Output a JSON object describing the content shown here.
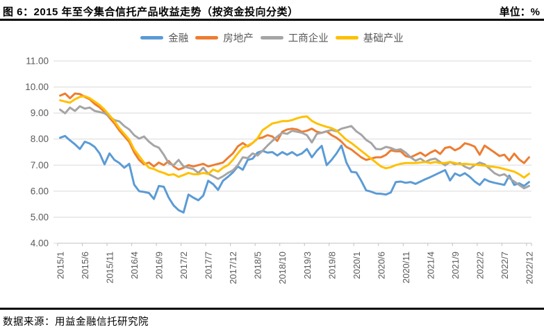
{
  "header": {
    "title": "图 6：2015 年至今集合信托产品收益走势（按资金投向分类）",
    "unit_label": "单位：%"
  },
  "footer": {
    "source": "数据来源：用益金融信托研究院"
  },
  "colors": {
    "finance": "#5B9BD5",
    "real_estate": "#ED7D31",
    "industrial": "#A5A5A5",
    "infrastructure": "#FFC000",
    "gridline": "#D9D9D9",
    "axis": "#BFBFBF",
    "tick_text": "#595959"
  },
  "chart_data": {
    "type": "line",
    "title": "图 6：2015 年至今集合信托产品收益走势（按资金投向分类）",
    "unit": "%",
    "xlabel": "",
    "ylabel": "",
    "ylim": [
      4,
      11
    ],
    "grid": true,
    "legend_position": "top",
    "x_frequency": "monthly",
    "x_start": "2015/1",
    "x_end": "2022/12",
    "x_tick_interval_months": 5,
    "x_tick_labels": [
      "2015/1",
      "2015/6",
      "2015/11",
      "2016/4",
      "2016/9",
      "2017/2",
      "2017/7",
      "2017/12",
      "2018/5",
      "2018/10",
      "2019/3",
      "2019/8",
      "2020/1",
      "2020/6",
      "2020/11",
      "2021/4",
      "2021/9",
      "2022/2",
      "2022/7",
      "2022/12"
    ],
    "y_tick_labels": [
      "11.00",
      "10.00",
      "9.00",
      "8.00",
      "7.00",
      "6.00",
      "5.00",
      "4.00"
    ],
    "series": [
      {
        "name": "金融",
        "color": "#5B9BD5",
        "values": [
          8.05,
          8.12,
          7.95,
          7.8,
          7.62,
          7.9,
          7.83,
          7.7,
          7.45,
          7.03,
          7.45,
          7.2,
          7.08,
          6.9,
          7.05,
          6.25,
          6.0,
          5.97,
          5.93,
          5.7,
          6.2,
          6.17,
          5.75,
          5.45,
          5.27,
          5.18,
          5.87,
          5.75,
          5.65,
          5.83,
          6.4,
          6.27,
          6.05,
          6.4,
          6.55,
          6.72,
          6.95,
          6.82,
          7.2,
          7.25,
          7.48,
          7.55,
          7.48,
          7.5,
          7.37,
          7.5,
          7.4,
          7.5,
          7.37,
          7.45,
          7.62,
          7.3,
          7.55,
          7.74,
          7.0,
          7.2,
          7.45,
          7.75,
          7.1,
          6.74,
          6.72,
          6.4,
          6.03,
          5.98,
          5.91,
          5.9,
          5.87,
          5.95,
          6.35,
          6.37,
          6.32,
          6.35,
          6.28,
          6.37,
          6.46,
          6.54,
          6.63,
          6.72,
          6.81,
          6.41,
          6.68,
          6.59,
          6.69,
          6.55,
          6.37,
          6.24,
          6.46,
          6.37,
          6.32,
          6.28,
          6.24,
          6.6,
          6.24,
          6.3,
          6.2,
          6.35
        ]
      },
      {
        "name": "房地产",
        "color": "#ED7D31",
        "values": [
          9.67,
          9.75,
          9.57,
          9.75,
          9.73,
          9.62,
          9.53,
          9.35,
          9.22,
          9.04,
          8.82,
          8.6,
          8.33,
          8.11,
          7.89,
          7.49,
          7.2,
          7.03,
          7.1,
          6.95,
          7.1,
          7.0,
          7.16,
          6.95,
          6.83,
          6.9,
          7.0,
          6.95,
          7.0,
          7.05,
          6.95,
          7.0,
          7.05,
          7.1,
          7.28,
          7.45,
          7.72,
          7.85,
          7.72,
          7.85,
          8.02,
          8.06,
          8.15,
          8.1,
          7.93,
          8.28,
          8.37,
          8.4,
          8.37,
          8.28,
          8.32,
          8.4,
          8.28,
          8.24,
          8.3,
          8.15,
          8.05,
          7.9,
          7.7,
          7.6,
          7.45,
          7.3,
          7.2,
          7.25,
          7.3,
          7.3,
          7.39,
          7.57,
          7.53,
          7.53,
          7.35,
          7.3,
          7.39,
          7.48,
          7.35,
          7.48,
          7.57,
          7.43,
          7.66,
          7.7,
          7.57,
          7.66,
          7.84,
          7.79,
          7.71,
          7.4,
          7.75,
          7.62,
          7.49,
          7.35,
          7.4,
          7.18,
          7.44,
          7.22,
          7.08,
          7.3
        ]
      },
      {
        "name": "工商企业",
        "color": "#A5A5A5",
        "values": [
          9.13,
          8.99,
          9.21,
          9.08,
          9.26,
          9.17,
          9.21,
          9.08,
          9.04,
          8.99,
          8.86,
          8.73,
          8.68,
          8.5,
          8.37,
          8.15,
          8.02,
          8.1,
          7.9,
          7.75,
          7.67,
          7.4,
          7.07,
          7.0,
          7.2,
          6.95,
          6.9,
          6.85,
          6.7,
          6.9,
          6.67,
          6.57,
          6.47,
          6.57,
          6.7,
          6.8,
          7.0,
          7.3,
          7.27,
          7.45,
          7.37,
          7.55,
          7.75,
          7.93,
          8.1,
          8.24,
          8.2,
          8.32,
          8.28,
          8.24,
          8.15,
          7.87,
          8.2,
          8.24,
          8.3,
          8.35,
          8.3,
          8.4,
          8.45,
          8.5,
          8.3,
          8.17,
          7.97,
          7.85,
          7.62,
          7.61,
          7.7,
          7.66,
          7.58,
          7.61,
          7.48,
          7.3,
          7.17,
          7.25,
          7.12,
          7.21,
          7.25,
          7.12,
          6.99,
          7.12,
          7.03,
          7.08,
          6.94,
          6.86,
          7.0,
          7.1,
          7.03,
          6.86,
          6.69,
          6.6,
          6.65,
          6.5,
          6.37,
          6.24,
          6.11,
          6.2
        ]
      },
      {
        "name": "基础产业",
        "color": "#FFC000",
        "values": [
          9.49,
          9.44,
          9.4,
          9.53,
          9.62,
          9.65,
          9.57,
          9.44,
          9.31,
          9.13,
          8.91,
          8.69,
          8.42,
          8.2,
          7.98,
          7.6,
          7.35,
          7.1,
          6.9,
          6.85,
          6.76,
          6.7,
          6.62,
          6.65,
          6.55,
          6.62,
          6.7,
          6.65,
          6.65,
          6.7,
          6.66,
          6.83,
          6.75,
          6.9,
          7.0,
          7.2,
          7.45,
          7.67,
          7.75,
          7.85,
          8.03,
          8.34,
          8.47,
          8.6,
          8.64,
          8.69,
          8.69,
          8.73,
          8.8,
          8.85,
          8.87,
          8.7,
          8.6,
          8.53,
          8.47,
          8.42,
          8.33,
          8.15,
          7.97,
          7.85,
          7.7,
          7.55,
          7.4,
          7.25,
          7.1,
          6.95,
          6.88,
          6.92,
          7.0,
          7.05,
          7.08,
          7.08,
          7.08,
          7.1,
          7.12,
          7.08,
          7.12,
          7.08,
          7.08,
          7.12,
          7.08,
          7.03,
          7.05,
          7.03,
          7.02,
          7.0,
          6.98,
          6.95,
          6.93,
          6.9,
          6.85,
          6.8,
          6.75,
          6.65,
          6.52,
          6.67
        ]
      }
    ]
  }
}
